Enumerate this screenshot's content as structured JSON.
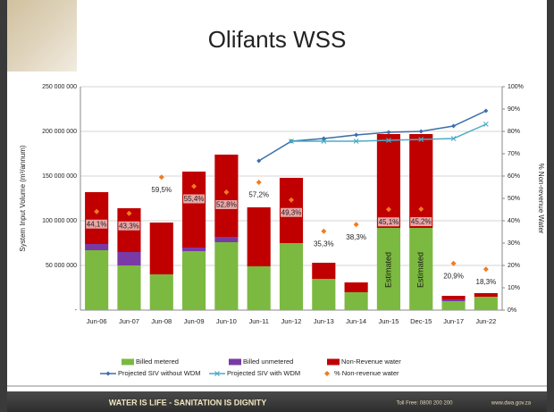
{
  "chart_data": {
    "type": "bar",
    "title": "Olifants WSS",
    "y_label": "System Input Volume (m³/annum)",
    "y2_label": "% Non-revenue Water",
    "categories": [
      "Jun-06",
      "Jun-07",
      "Jun-08",
      "Jun-09",
      "Jun-10",
      "Jun-11",
      "Jun-12",
      "Jun-13",
      "Jun-14",
      "Jun-15",
      "Dec-15",
      "Jun-17",
      "Jun-22"
    ],
    "series": [
      {
        "name": "Billed metered",
        "type": "bar",
        "color": "#7cb940",
        "values": [
          67000000,
          50000000,
          40000000,
          66000000,
          76000000,
          49000000,
          75000000,
          35000000,
          20000000,
          92000000,
          92000000,
          10000000,
          15000000
        ]
      },
      {
        "name": "Billed unmetered",
        "type": "bar",
        "color": "#7a3aa6",
        "values": [
          7000000,
          15000000,
          0,
          4000000,
          6000000,
          0,
          0,
          0,
          0,
          0,
          0,
          2000000,
          0
        ]
      },
      {
        "name": "Non-Revenue water",
        "type": "bar",
        "color": "#c00000",
        "values": [
          58000000,
          49000000,
          58000000,
          85000000,
          92000000,
          66000000,
          73000000,
          18000000,
          11000000,
          105000000,
          105000000,
          4000000,
          4000000
        ]
      },
      {
        "name": "Projected SIV without WDM",
        "type": "line",
        "color": "#3c6eaa",
        "values": [
          null,
          null,
          null,
          null,
          null,
          167000000,
          189000000,
          192000000,
          196000000,
          199000000,
          200000000,
          206000000,
          223000000
        ]
      },
      {
        "name": "Projected SIV with WDM",
        "type": "line",
        "color": "#4bacc6",
        "values": [
          null,
          null,
          null,
          null,
          null,
          null,
          189000000,
          189000000,
          189000000,
          190000000,
          191000000,
          192000000,
          208000000
        ]
      },
      {
        "name": "% Non-revenue water",
        "type": "scatter",
        "axis": "y2",
        "color": "#f07c22",
        "values": [
          44.1,
          43.3,
          59.5,
          55.4,
          52.8,
          57.2,
          49.3,
          35.3,
          38.3,
          45.1,
          45.2,
          20.9,
          18.3
        ],
        "value_labels": [
          "44,1%",
          "43,3%",
          "59,5%",
          "55,4%",
          "52,8%",
          "57,2%",
          "49,3%",
          "35,3%",
          "38,3%",
          "45,1%",
          "45,2%",
          "20,9%",
          "18,3%"
        ]
      }
    ],
    "annotations": [
      {
        "text": "Estimated",
        "x": "Jun-15"
      },
      {
        "text": "Estimated",
        "x": "Dec-15"
      }
    ],
    "ylim": [
      0,
      250000000
    ],
    "yticks": [
      {
        "value": 0,
        "label": "-"
      },
      {
        "value": 50000000,
        "label": "50 000 000"
      },
      {
        "value": 100000000,
        "label": "100 000 000"
      },
      {
        "value": 150000000,
        "label": "150 000 000"
      },
      {
        "value": 200000000,
        "label": "200 000 000"
      },
      {
        "value": 250000000,
        "label": "250 000 000"
      }
    ],
    "y2lim": [
      0,
      100
    ],
    "y2ticks": [
      {
        "value": 0,
        "label": "0%"
      },
      {
        "value": 10,
        "label": "10%"
      },
      {
        "value": 20,
        "label": "20%"
      },
      {
        "value": 30,
        "label": "30%"
      },
      {
        "value": 40,
        "label": "40%"
      },
      {
        "value": 50,
        "label": "50%"
      },
      {
        "value": 60,
        "label": "60%"
      },
      {
        "value": 70,
        "label": "70%"
      },
      {
        "value": 80,
        "label": "80%"
      },
      {
        "value": 90,
        "label": "90%"
      },
      {
        "value": 100,
        "label": "100%"
      }
    ],
    "grid": true,
    "legend": "bottom"
  },
  "footer": {
    "slogan": "WATER IS LIFE - SANITATION IS DIGNITY",
    "phone": "Toll Free: 0800 200 200",
    "website": "www.dwa.gov.za"
  }
}
